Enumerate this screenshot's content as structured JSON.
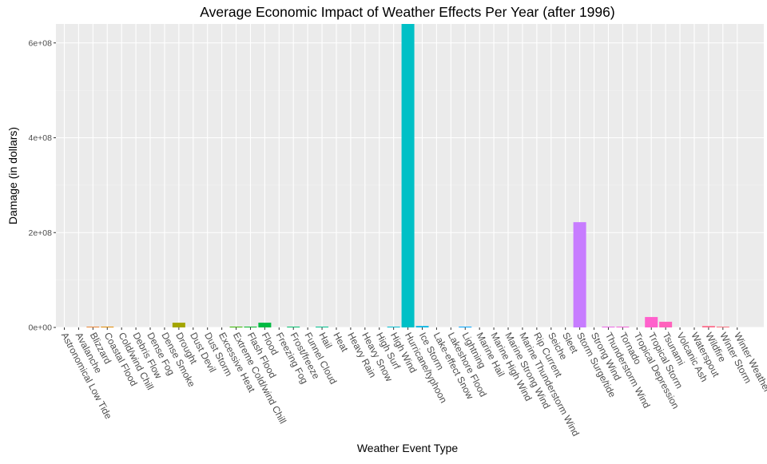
{
  "chart_data": {
    "type": "bar",
    "title": "Average Economic Impact of Weather Effects Per Year (after 1996)",
    "xlabel": "Weather Event Type",
    "ylabel": "Damage (in dollars)",
    "ylim": [
      0,
      640000000
    ],
    "yticks": [
      0,
      200000000,
      400000000,
      600000000
    ],
    "ytick_labels": [
      "0e+00",
      "2e+08",
      "4e+08",
      "6e+08"
    ],
    "grid": true,
    "legend": "none",
    "categories": [
      "Astronomical Low Tide",
      "Avalanche",
      "Blizzard",
      "Coastal Flood",
      "Cold/wind Chill",
      "Debris Flow",
      "Dense Fog",
      "Dense Smoke",
      "Drought",
      "Dust Devil",
      "Dust Storm",
      "Excessive Heat",
      "Extreme Cold/wind Chill",
      "Flash Flood",
      "Flood",
      "Freezing Fog",
      "Frost/freeze",
      "Funnel Cloud",
      "Hail",
      "Heat",
      "Heavy Rain",
      "Heavy Snow",
      "High Surf",
      "High Wind",
      "Hurricane/typhoon",
      "Ice Storm",
      "Lake-effect Snow",
      "Lakeshore Flood",
      "Lightning",
      "Marine Hail",
      "Marine High Wind",
      "Marine Strong Wind",
      "Marine Thunderstorm Wind",
      "Rip Current",
      "Seiche",
      "Sleet",
      "Storm Surge/tide",
      "Strong Wind",
      "Thunderstorm Wind",
      "Tornado",
      "Tropical Depression",
      "Tropical Storm",
      "Tsunami",
      "Volcanic Ash",
      "Waterspout",
      "Wildfire",
      "Winter Storm",
      "Winter Weather"
    ],
    "values": [
      0,
      0,
      100000,
      100000,
      0,
      0,
      0,
      0,
      10000000,
      0,
      0,
      0,
      1000000,
      100000,
      10000000,
      0,
      1200000,
      0,
      100000,
      0,
      0,
      0,
      0,
      100000,
      660000000,
      3000000,
      0,
      0,
      100000,
      0,
      0,
      0,
      0,
      0,
      0,
      0,
      222000000,
      0,
      100000,
      1200000,
      0,
      22000000,
      12000000,
      0,
      0,
      3000000,
      100000,
      0
    ],
    "colors": [
      "#F8766D",
      "#F27D52",
      "#EA8331",
      "#E18A00",
      "#D89000",
      "#CD9600",
      "#C09B00",
      "#B3A000",
      "#A3A500",
      "#93AA00",
      "#7FAE00",
      "#67B100",
      "#39B600",
      "#00B826",
      "#00BA42",
      "#00BC59",
      "#00BE6C",
      "#00BF7D",
      "#00C08D",
      "#00C19C",
      "#00C1AA",
      "#00C0B8",
      "#00BFC4",
      "#00BDD0",
      "#00C0C6",
      "#00B4E4",
      "#00B0ED",
      "#00ABF6",
      "#00A5FF",
      "#35A2FF",
      "#619CFF",
      "#7D96FF",
      "#9590FF",
      "#A989FF",
      "#BB83FF",
      "#C87DFF",
      "#C77CFF",
      "#E76BF3",
      "#EE67E8",
      "#F365D9",
      "#F763CB",
      "#FF61CC",
      "#FF62BC",
      "#FF65AB",
      "#FF689A",
      "#FF6C8C",
      "#FB727F",
      "#F8766D"
    ]
  }
}
